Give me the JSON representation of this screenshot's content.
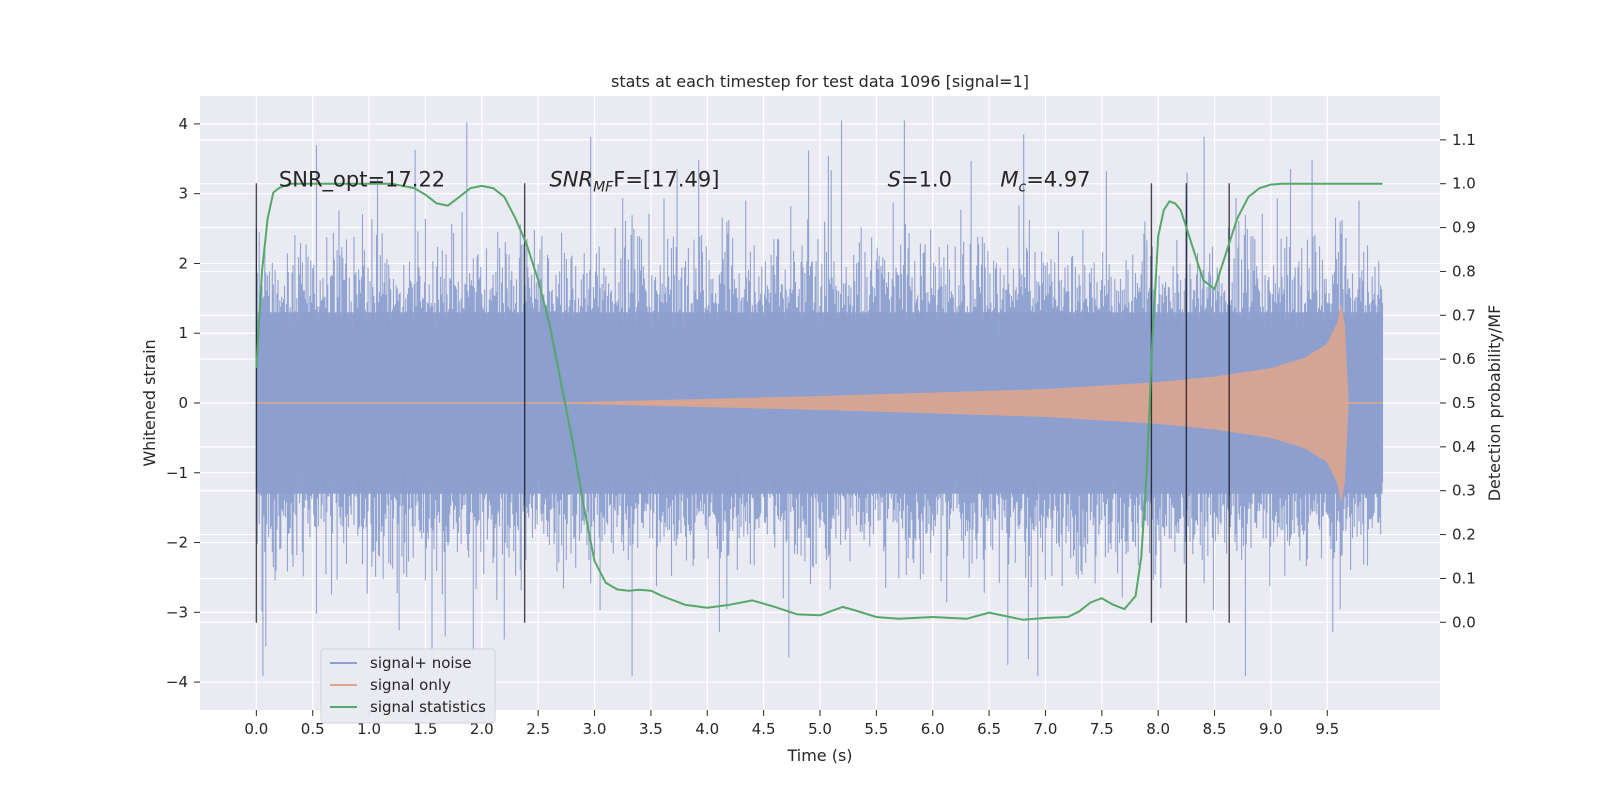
{
  "chart_data": {
    "type": "line",
    "title": "stats at each timestep for test data 1096 [signal=1]",
    "xlabel": "Time (s)",
    "ylabel_left": "Whitened strain",
    "ylabel_right": "Detection probability/MF",
    "xlim": [
      -0.5,
      10.5
    ],
    "ylim_left": [
      -4.4,
      4.4
    ],
    "ylim_right": [
      -0.2,
      1.2
    ],
    "x_ticks": [
      "0.0",
      "0.5",
      "1.0",
      "1.5",
      "2.0",
      "2.5",
      "3.0",
      "3.5",
      "4.0",
      "4.5",
      "5.0",
      "5.5",
      "6.0",
      "6.5",
      "7.0",
      "7.5",
      "8.0",
      "8.5",
      "9.0",
      "9.5"
    ],
    "x_tick_values": [
      0,
      0.5,
      1,
      1.5,
      2,
      2.5,
      3,
      3.5,
      4,
      4.5,
      5,
      5.5,
      6,
      6.5,
      7,
      7.5,
      8,
      8.5,
      9,
      9.5
    ],
    "y_left_ticks": [
      "−4",
      "−3",
      "−2",
      "−1",
      "0",
      "1",
      "2",
      "3",
      "4"
    ],
    "y_left_tick_values": [
      -4,
      -3,
      -2,
      -1,
      0,
      1,
      2,
      3,
      4
    ],
    "y_right_ticks": [
      "0.0",
      "0.1",
      "0.2",
      "0.3",
      "0.4",
      "0.5",
      "0.6",
      "0.7",
      "0.8",
      "0.9",
      "1.0",
      "1.1"
    ],
    "y_right_tick_values": [
      0,
      0.1,
      0.2,
      0.3,
      0.4,
      0.5,
      0.6,
      0.7,
      0.8,
      0.9,
      1.0,
      1.1
    ],
    "grid": true,
    "legend": {
      "placement": "lower-left",
      "entries": [
        {
          "label": "signal+ noise",
          "color": "#8c9fcf"
        },
        {
          "label": "signal only",
          "color": "#e0a58b"
        },
        {
          "label": "signal statistics",
          "color": "#55a868"
        }
      ]
    },
    "annotations": [
      {
        "text": "SNR_opt=17.22",
        "x": 0.2,
        "y": 3.2
      },
      {
        "prefix": "SNR",
        "sub": "MF",
        "suffix": "F=[17.49]",
        "x": 2.6,
        "y": 3.2
      },
      {
        "prefix": "S",
        "sub": "",
        "suffix": "=1.0",
        "x": 5.6,
        "y": 3.2
      },
      {
        "prefix": "M",
        "sub": "c",
        "suffix": "=4.97",
        "x": 6.6,
        "y": 3.2
      }
    ],
    "vertical_lines": {
      "x": [
        0.0,
        2.38,
        7.94,
        8.25,
        8.63
      ],
      "y_range": [
        -3.15,
        3.15
      ],
      "color": "#000000"
    },
    "series": [
      {
        "name": "signal+ noise",
        "color": "#8c9fcf",
        "x_range": [
          0.0,
          9.99
        ],
        "envelope_typical": 2.0,
        "max_spike": 4.05,
        "min_spike": -4.0
      },
      {
        "name": "signal only",
        "color": "#e0a58b",
        "x_range": [
          0.0,
          9.99
        ],
        "amplitude_points": [
          [
            0,
            0
          ],
          [
            2.5,
            0.0
          ],
          [
            3.0,
            0.02
          ],
          [
            4.0,
            0.06
          ],
          [
            5.0,
            0.1
          ],
          [
            6.0,
            0.15
          ],
          [
            7.0,
            0.2
          ],
          [
            7.5,
            0.25
          ],
          [
            8.0,
            0.3
          ],
          [
            8.5,
            0.38
          ],
          [
            9.0,
            0.5
          ],
          [
            9.3,
            0.65
          ],
          [
            9.5,
            0.85
          ],
          [
            9.6,
            1.2
          ],
          [
            9.65,
            1.7
          ],
          [
            9.67,
            0.0
          ],
          [
            9.99,
            0.0
          ]
        ]
      },
      {
        "name": "signal statistics",
        "color": "#55a868",
        "axis": "right",
        "x": [
          0.0,
          0.05,
          0.1,
          0.15,
          0.2,
          0.3,
          0.5,
          0.8,
          1.0,
          1.2,
          1.4,
          1.5,
          1.6,
          1.7,
          1.8,
          1.9,
          2.0,
          2.1,
          2.2,
          2.3,
          2.4,
          2.5,
          2.6,
          2.7,
          2.8,
          2.9,
          3.0,
          3.1,
          3.2,
          3.3,
          3.4,
          3.5,
          3.6,
          3.8,
          4.0,
          4.2,
          4.4,
          4.6,
          4.8,
          5.0,
          5.2,
          5.3,
          5.5,
          5.7,
          6.0,
          6.3,
          6.5,
          6.8,
          7.0,
          7.2,
          7.3,
          7.4,
          7.5,
          7.6,
          7.7,
          7.8,
          7.85,
          7.9,
          7.95,
          8.0,
          8.05,
          8.1,
          8.15,
          8.2,
          8.25,
          8.3,
          8.4,
          8.5,
          8.6,
          8.7,
          8.8,
          8.9,
          9.0,
          9.1,
          9.3,
          9.5,
          9.7,
          9.99
        ],
        "y": [
          0.58,
          0.8,
          0.92,
          0.98,
          0.99,
          1.0,
          1.0,
          1.0,
          1.0,
          1.0,
          0.99,
          0.975,
          0.955,
          0.95,
          0.97,
          0.99,
          0.995,
          0.99,
          0.97,
          0.92,
          0.86,
          0.78,
          0.68,
          0.55,
          0.42,
          0.27,
          0.14,
          0.09,
          0.075,
          0.072,
          0.074,
          0.072,
          0.06,
          0.04,
          0.033,
          0.04,
          0.05,
          0.035,
          0.018,
          0.016,
          0.035,
          0.028,
          0.012,
          0.008,
          0.012,
          0.008,
          0.022,
          0.006,
          0.01,
          0.012,
          0.025,
          0.045,
          0.055,
          0.04,
          0.03,
          0.06,
          0.15,
          0.35,
          0.65,
          0.88,
          0.94,
          0.96,
          0.955,
          0.94,
          0.9,
          0.86,
          0.78,
          0.76,
          0.84,
          0.92,
          0.97,
          0.99,
          0.998,
          1.0,
          1.0,
          1.0,
          1.0,
          1.0
        ]
      }
    ]
  }
}
